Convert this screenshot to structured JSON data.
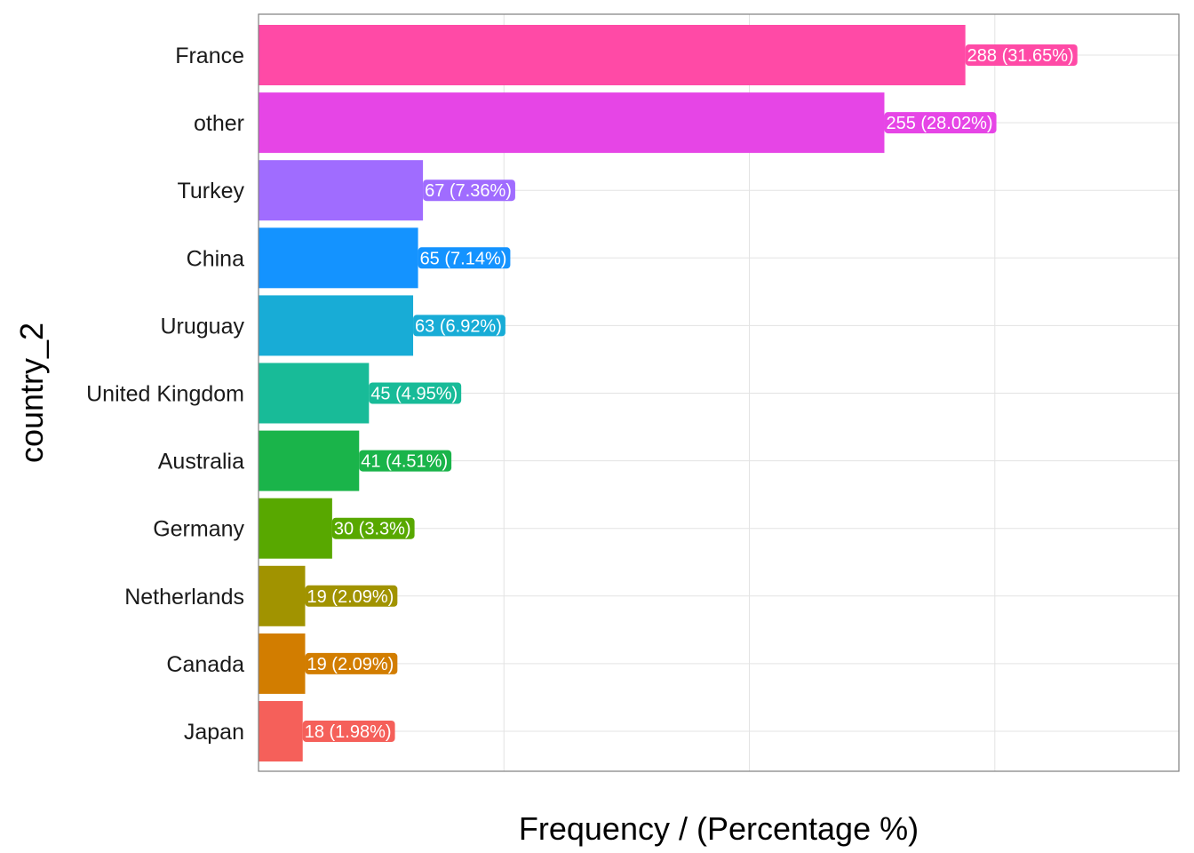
{
  "chart_data": {
    "type": "bar",
    "orientation": "horizontal",
    "title": "",
    "xlabel": "Frequency / (Percentage %)",
    "ylabel": "country_2",
    "xlim": [
      0,
      375
    ],
    "x_gridlines": [
      0,
      100,
      200,
      300
    ],
    "x_tick_labels_shown": false,
    "grid": true,
    "legend": "none",
    "categories": [
      "France",
      "other",
      "Turkey",
      "China",
      "Uruguay",
      "United Kingdom",
      "Australia",
      "Germany",
      "Netherlands",
      "Canada",
      "Japan"
    ],
    "values": [
      288,
      255,
      67,
      65,
      63,
      45,
      41,
      30,
      19,
      19,
      18
    ],
    "labels": [
      "288 (31.65%)",
      "255 (28.02%)",
      "67 (7.36%)",
      "65 (7.14%)",
      "63 (6.92%)",
      "45 (4.95%)",
      "41 (4.51%)",
      "30 (3.3%)",
      "19 (2.09%)",
      "19 (2.09%)",
      "18 (1.98%)"
    ],
    "colors": [
      "#FF4AA6",
      "#E645E6",
      "#A06CFF",
      "#1493FF",
      "#18ACD6",
      "#18BB98",
      "#1AB44A",
      "#58A800",
      "#A19300",
      "#D27D00",
      "#F5605A"
    ]
  }
}
